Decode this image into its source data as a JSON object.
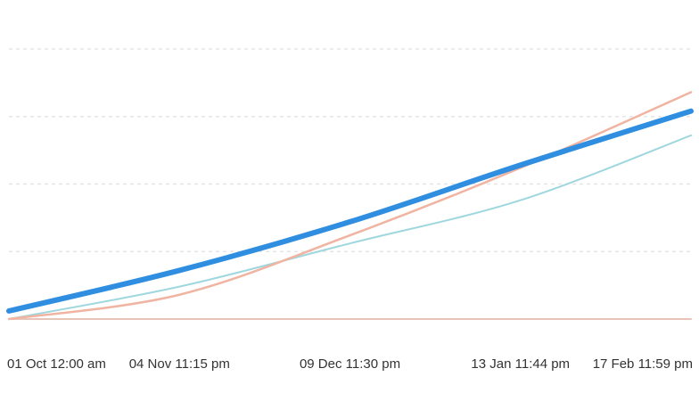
{
  "chart_data": {
    "type": "line",
    "title": "",
    "xlabel": "",
    "ylabel": "",
    "x": [
      "01 Oct 12:00 am",
      "04 Nov 11:15 pm",
      "09 Dec 11:30 pm",
      "13 Jan 11:44 pm",
      "17 Feb 11:59 pm"
    ],
    "x_tick_labels": [
      "01 Oct 12:00 am",
      "04 Nov 11:15 pm",
      "09 Dec 11:30 pm",
      "13 Jan 11:44 pm",
      "17 Feb 11:59 pm"
    ],
    "y_tick_labels": [],
    "ylim": [
      0,
      100
    ],
    "grid": "horizontal dashed",
    "legend": "none",
    "series": [
      {
        "color": "#2f8ee0",
        "values": [
          3,
          18,
          36,
          57,
          77
        ]
      },
      {
        "color": "#f0b4a2",
        "values": [
          0,
          9,
          31,
          56,
          84
        ]
      },
      {
        "color": "#9fd7de",
        "values": [
          0,
          12,
          28,
          44,
          68
        ]
      },
      {
        "color": "#e8c4b6",
        "values": [
          0,
          0,
          0,
          0,
          0
        ]
      }
    ]
  }
}
